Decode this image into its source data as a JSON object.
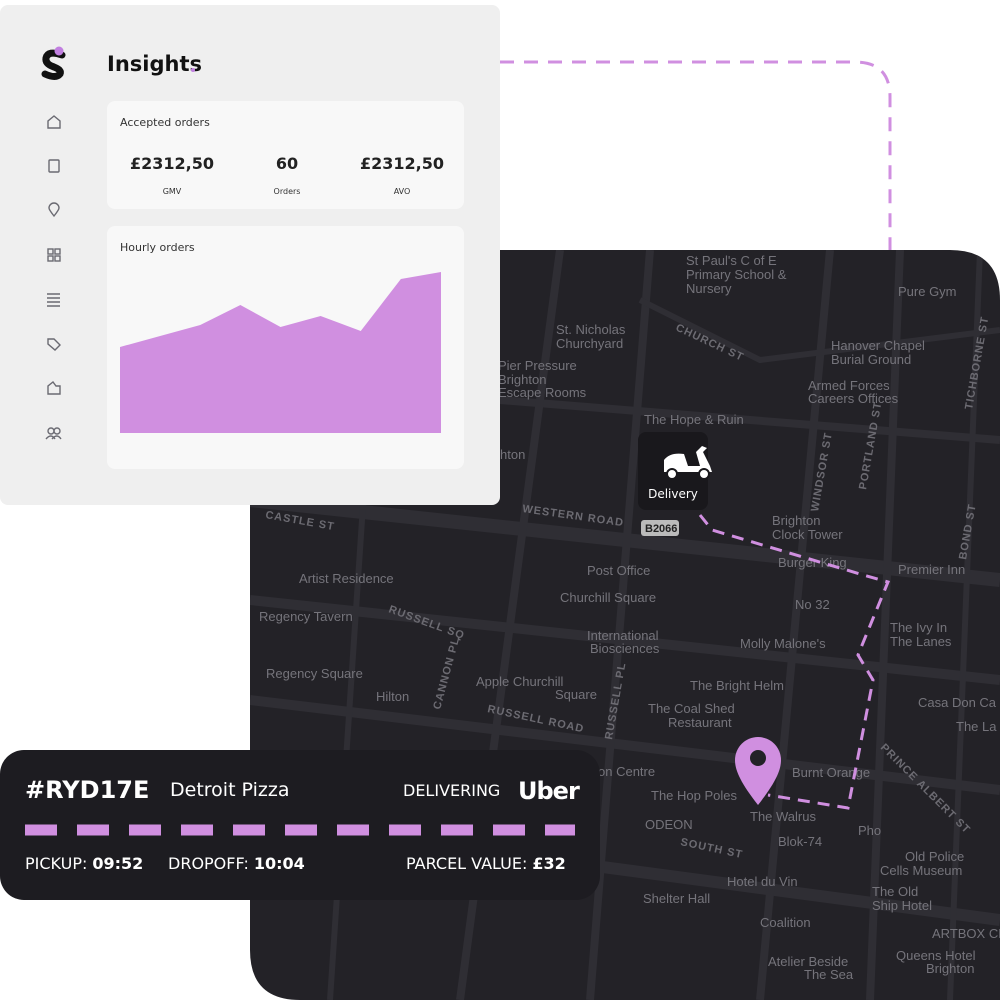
{
  "sidebar": {
    "title": "Insights"
  },
  "accepted_orders": {
    "title": "Accepted orders",
    "stats": [
      {
        "value": "£2312,50",
        "label": "GMV"
      },
      {
        "value": "60",
        "label": "Orders"
      },
      {
        "value": "£2312,50",
        "label": "AVO"
      }
    ]
  },
  "chart_data": {
    "type": "area",
    "title": "Hourly orders",
    "values": [
      86,
      97,
      108,
      128,
      106,
      117,
      102,
      154,
      161
    ],
    "color": "#d08fe0",
    "ylim": [
      0,
      180
    ]
  },
  "map": {
    "marker": "Delivery",
    "labels": [
      "St Paul's C of E",
      "Primary School &",
      "Nursery",
      "Pure Gym",
      "St. Nicholas",
      "Churchyard",
      "CHURCH ST",
      "Hanover Chapel",
      "Burial Ground",
      "Pier Pressure",
      "Brighton",
      "Escape Rooms",
      "Armed Forces",
      "Careers Offices",
      "The Hope & Ruin",
      "WINDSOR ST",
      "PORTLAND ST",
      "TICHBORNE ST",
      "WESTERN ROAD",
      "B2066",
      "Brighton",
      "Clock Tower",
      "CASTLE ST",
      "Burger King",
      "Premier Inn",
      "BOND ST",
      "Artist Residence",
      "Post Office",
      "Churchill Square",
      "No 32",
      "Regency Tavern",
      "RUSSELL SQ",
      "The Ivy In",
      "The Lanes",
      "International",
      "Biosciences",
      "Molly Malone's",
      "Regency Square",
      "CANNON PL",
      "Apple Churchill",
      "Square",
      "RUSSELL PL",
      "The Bright Helm",
      "Hilton",
      "Casa Don Ca",
      "RUSSELL ROAD",
      "The Coal Shed",
      "Restaurant",
      "The La",
      "PRINCE ALBERT ST",
      "on Centre",
      "Burnt Orange",
      "The Hop Poles",
      "The Walrus",
      "ODEON",
      "Pho",
      "Blok-74",
      "SOUTH ST",
      "Old Police",
      "Cells Museum",
      "Hotel du Vin",
      "The Old",
      "Ship Hotel",
      "Shelter Hall",
      "Coalition",
      "ARTBOX CE",
      "Atelier Beside",
      "The Sea",
      "Queens Hotel",
      "Brighton",
      "hton"
    ]
  },
  "order": {
    "id": "#RYD17E",
    "restaurant": "Detroit Pizza",
    "status": "DELIVERING",
    "provider": "Uber",
    "pickup_label": "PICKUP:",
    "pickup_time": "09:52",
    "dropoff_label": "DROPOFF:",
    "dropoff_time": "10:04",
    "parcel_label": "PARCEL VALUE:",
    "parcel_value": "£32"
  }
}
